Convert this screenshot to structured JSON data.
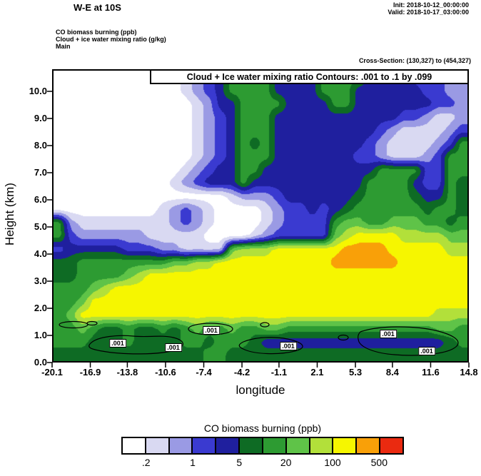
{
  "header": {
    "title": "W-E at 10S",
    "init": "Init: 2018-10-12_00:00:00",
    "valid": "Valid: 2018-10-17_03:00:00",
    "field_lines": [
      "CO biomass burning   (ppb)",
      "Cloud + ice water mixing ratio   (g/kg)",
      "Main"
    ],
    "cross_section": "Cross-Section: (130,327) to (454,327)"
  },
  "plot": {
    "inner_title": "Cloud + Ice water mixing ratio Contours: .001 to .1 by .099",
    "contour_label": ".001"
  },
  "axes": {
    "y_title": "Height (km)",
    "x_title": "longitude",
    "y_ticks": [
      "0.0",
      "1.0",
      "2.0",
      "3.0",
      "4.0",
      "5.0",
      "6.0",
      "7.0",
      "8.0",
      "9.0",
      "10.0"
    ],
    "x_ticks": [
      "-20.1",
      "-16.9",
      "-13.8",
      "-10.6",
      "-7.4",
      "-4.2",
      "-1.1",
      "2.1",
      "5.3",
      "8.4",
      "11.6",
      "14.8"
    ]
  },
  "colorbar": {
    "title": "CO biomass burning  (ppb)",
    "tick_labels": [
      ".2",
      "1",
      "5",
      "20",
      "100",
      "500"
    ]
  },
  "chart_data": {
    "type": "filled-contour",
    "title": "W-E at 10S",
    "fill_variable": "CO biomass burning (ppb)",
    "contour_variable": "Cloud + ice water mixing ratio (g/kg)",
    "contour_levels": {
      "from": 0.001,
      "to": 0.1,
      "by": 0.099,
      "label": ".001"
    },
    "x": {
      "label": "longitude",
      "range": [
        -20.1,
        14.8
      ],
      "ticks": [
        -20.1,
        -16.9,
        -13.8,
        -10.6,
        -7.4,
        -4.2,
        -1.1,
        2.1,
        5.3,
        8.4,
        11.6,
        14.8
      ]
    },
    "y": {
      "label": "Height (km)",
      "range": [
        0,
        10.8
      ],
      "ticks": [
        0,
        1,
        2,
        3,
        4,
        5,
        6,
        7,
        8,
        9,
        10
      ]
    },
    "fill_level_bounds": [
      0.2,
      0.5,
      1,
      2,
      5,
      10,
      20,
      50,
      100,
      200,
      500
    ],
    "fill_colors": [
      "#ffffff",
      "#d9d9f2",
      "#9a9ae4",
      "#3a3ad0",
      "#1f1f9e",
      "#0e6b24",
      "#2d9b32",
      "#5fc348",
      "#b2e03a",
      "#f6f600",
      "#f9a008",
      "#ea2a10"
    ],
    "band_meaning": [
      "<0.2",
      "0.2-0.5",
      "0.5-1",
      "1-2",
      "2-5",
      "5-10",
      "10-20",
      "20-50",
      "50-100",
      "100-200",
      "200-500",
      ">500"
    ],
    "grid_note": "grid_levels[row][col] = color band index (0 = <0.2 ppb ... 11 = >500 ppb); rows from top (10.8 km) down to surface (0 km), cols from -20.1 deg lon (left) to 14.8 deg (right)",
    "grid_levels": [
      [
        0,
        0,
        0,
        0,
        0,
        0,
        0,
        0,
        0,
        0,
        0,
        1,
        2,
        3,
        4,
        6,
        6,
        6,
        6,
        4,
        4,
        4,
        4,
        6,
        6,
        6,
        6,
        4,
        4,
        4,
        4,
        3,
        3,
        3,
        2,
        2
      ],
      [
        0,
        0,
        0,
        0,
        0,
        0,
        0,
        0,
        0,
        0,
        0,
        1,
        2,
        3,
        4,
        6,
        6,
        6,
        6,
        4,
        4,
        4,
        4,
        6,
        6,
        6,
        4,
        4,
        4,
        4,
        4,
        4,
        3,
        3,
        2,
        2
      ],
      [
        0,
        0,
        0,
        0,
        0,
        0,
        0,
        0,
        0,
        0,
        0,
        0,
        1,
        2,
        4,
        4,
        6,
        6,
        6,
        6,
        4,
        4,
        4,
        4,
        6,
        6,
        4,
        4,
        4,
        4,
        4,
        4,
        4,
        3,
        3,
        2
      ],
      [
        0,
        0,
        0,
        0,
        0,
        0,
        0,
        0,
        0,
        0,
        0,
        0,
        1,
        2,
        3,
        4,
        6,
        6,
        6,
        4,
        4,
        4,
        4,
        4,
        4,
        4,
        4,
        4,
        4,
        4,
        3,
        3,
        2,
        1,
        1,
        2
      ],
      [
        0,
        0,
        0,
        0,
        0,
        0,
        0,
        0,
        0,
        0,
        0,
        0,
        1,
        2,
        3,
        4,
        6,
        6,
        6,
        4,
        4,
        4,
        4,
        4,
        4,
        4,
        4,
        4,
        3,
        2,
        1,
        1,
        1,
        1,
        2,
        3
      ],
      [
        0,
        0,
        0,
        0,
        0,
        0,
        0,
        0,
        0,
        0,
        0,
        0,
        1,
        2,
        3,
        4,
        6,
        5,
        6,
        4,
        4,
        4,
        4,
        4,
        4,
        4,
        4,
        3,
        2,
        1,
        1,
        1,
        1,
        2,
        3,
        6
      ],
      [
        0,
        0,
        0,
        0,
        0,
        0,
        0,
        0,
        0,
        0,
        0,
        0,
        1,
        2,
        3,
        4,
        6,
        6,
        6,
        4,
        4,
        4,
        4,
        4,
        4,
        4,
        3,
        3,
        2,
        1,
        1,
        1,
        2,
        3,
        6,
        6
      ],
      [
        0,
        0,
        0,
        0,
        0,
        0,
        0,
        0,
        0,
        0,
        0,
        1,
        2,
        3,
        4,
        4,
        6,
        6,
        4,
        4,
        4,
        4,
        4,
        4,
        4,
        4,
        4,
        4,
        6,
        6,
        6,
        6,
        3,
        3,
        6,
        6
      ],
      [
        0,
        0,
        0,
        0,
        0,
        0,
        0,
        0,
        0,
        0,
        1,
        2,
        3,
        4,
        4,
        4,
        6,
        4,
        4,
        4,
        4,
        4,
        4,
        4,
        4,
        4,
        4,
        6,
        6,
        6,
        6,
        4,
        3,
        3,
        6,
        5
      ],
      [
        0,
        0,
        0,
        0,
        0,
        0,
        0,
        0,
        0,
        0,
        0,
        0,
        0,
        0,
        0,
        1,
        2,
        2,
        2,
        3,
        4,
        4,
        4,
        4,
        4,
        4,
        5,
        6,
        6,
        6,
        6,
        5,
        4,
        4,
        6,
        5
      ],
      [
        0,
        0,
        0,
        0,
        0,
        0,
        0,
        0,
        0,
        1,
        2,
        3,
        2,
        1,
        0,
        0,
        0,
        0,
        1,
        2,
        3,
        3,
        4,
        3,
        4,
        5,
        6,
        6,
        6,
        6,
        6,
        6,
        5,
        6,
        6,
        5
      ],
      [
        6,
        2,
        1,
        1,
        1,
        1,
        1,
        1,
        1,
        1,
        2,
        3,
        2,
        1,
        0,
        0,
        0,
        0,
        1,
        2,
        3,
        3,
        3,
        3,
        6,
        7,
        7,
        6,
        6,
        7,
        7,
        7,
        6,
        6,
        5,
        6
      ],
      [
        6,
        3,
        2,
        2,
        2,
        2,
        2,
        2,
        1,
        1,
        1,
        1,
        1,
        0,
        0,
        0,
        0,
        1,
        2,
        3,
        3,
        3,
        3,
        3,
        7,
        8,
        9,
        9,
        9,
        9,
        8,
        8,
        8,
        8,
        7,
        7
      ],
      [
        3,
        4,
        4,
        4,
        4,
        4,
        3,
        3,
        3,
        2,
        2,
        1,
        1,
        1,
        1,
        7,
        8,
        8,
        8,
        9,
        9,
        9,
        9,
        9,
        9,
        10,
        10,
        10,
        10,
        9,
        9,
        9,
        9,
        9,
        8,
        8
      ],
      [
        5,
        5,
        6,
        6,
        6,
        6,
        6,
        6,
        6,
        6,
        7,
        7,
        8,
        8,
        9,
        9,
        9,
        9,
        9,
        9,
        9,
        9,
        9,
        9,
        10,
        10,
        10,
        10,
        10,
        10,
        9,
        9,
        9,
        9,
        9,
        9
      ],
      [
        5,
        5,
        6,
        6,
        6,
        6,
        7,
        8,
        9,
        9,
        9,
        9,
        9,
        9,
        9,
        9,
        9,
        9,
        9,
        9,
        9,
        9,
        9,
        9,
        9,
        9,
        9,
        9,
        9,
        9,
        9,
        9,
        9,
        9,
        9,
        9
      ],
      [
        6,
        6,
        6,
        7,
        8,
        9,
        9,
        9,
        9,
        9,
        9,
        9,
        9,
        9,
        9,
        9,
        9,
        9,
        9,
        9,
        9,
        9,
        9,
        9,
        9,
        9,
        9,
        9,
        9,
        9,
        9,
        9,
        9,
        9,
        9,
        9
      ],
      [
        6,
        6,
        7,
        9,
        9,
        9,
        9,
        9,
        9,
        9,
        9,
        9,
        9,
        9,
        9,
        9,
        9,
        9,
        9,
        9,
        9,
        9,
        9,
        9,
        9,
        9,
        9,
        9,
        9,
        9,
        9,
        9,
        9,
        9,
        9,
        9
      ],
      [
        6,
        7,
        9,
        9,
        9,
        9,
        9,
        9,
        9,
        9,
        9,
        9,
        9,
        9,
        9,
        9,
        9,
        9,
        9,
        9,
        9,
        9,
        9,
        9,
        9,
        9,
        9,
        9,
        9,
        9,
        9,
        9,
        9,
        8,
        8,
        8
      ],
      [
        6,
        6,
        7,
        6,
        5,
        5,
        6,
        5,
        5,
        6,
        5,
        6,
        7,
        6,
        6,
        7,
        6,
        6,
        7,
        7,
        6,
        6,
        6,
        6,
        6,
        6,
        6,
        6,
        6,
        6,
        6,
        6,
        6,
        7,
        7,
        6
      ],
      [
        6,
        6,
        6,
        5,
        5,
        5,
        6,
        5,
        5,
        5,
        5,
        6,
        6,
        5,
        6,
        6,
        6,
        5,
        4,
        4,
        4,
        4,
        4,
        4,
        4,
        4,
        4,
        4,
        4,
        4,
        4,
        4,
        4,
        4,
        5,
        6
      ],
      [
        5,
        5,
        5,
        5,
        5,
        5,
        5,
        5,
        5,
        5,
        5,
        5,
        5,
        6,
        6,
        5,
        5,
        5,
        5,
        5,
        5,
        5,
        5,
        5,
        5,
        5,
        5,
        5,
        5,
        5,
        5,
        5,
        5,
        5,
        5,
        5
      ]
    ]
  }
}
